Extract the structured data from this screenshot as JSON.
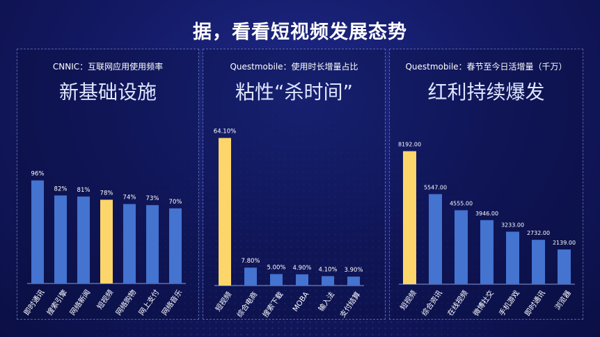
{
  "headline": "据，看看短视频发展态势",
  "colors": {
    "bar": "#4473d0",
    "highlight": "#fdd66b",
    "axis": "#8a9ad8"
  },
  "panels": [
    {
      "source": "CNNIC：互联网应用使用频率",
      "big_title": "新基础设施"
    },
    {
      "source": "Questmobile：使用时长增量占比",
      "big_title": "粘性“杀时间”"
    },
    {
      "source": "Questmobile：春节至今日活增量（千万）",
      "big_title": "红利持续爆发"
    }
  ],
  "chart_data": [
    {
      "type": "bar",
      "categories": [
        "即时通讯",
        "搜索引擎",
        "网络新闻",
        "短视频",
        "网络购物",
        "网上支付",
        "网络音乐"
      ],
      "values": [
        96,
        82,
        81,
        78,
        74,
        73,
        70
      ],
      "value_labels": [
        "96%",
        "82%",
        "81%",
        "78%",
        "74%",
        "73%",
        "70%"
      ],
      "highlight_index": 3,
      "ylim": [
        0,
        110
      ]
    },
    {
      "type": "bar",
      "categories": [
        "短视频",
        "综合电商",
        "搜索下载",
        "MOBA",
        "输入法",
        "支付结算"
      ],
      "values": [
        64.1,
        7.8,
        5.0,
        4.9,
        4.1,
        3.9
      ],
      "value_labels": [
        "64.10%",
        "7.80%",
        "5.00%",
        "4.90%",
        "4.10%",
        "3.90%"
      ],
      "highlight_index": 0,
      "ylim": [
        0,
        70
      ]
    },
    {
      "type": "bar",
      "categories": [
        "短视频",
        "综合资讯",
        "在线视频",
        "微博社交",
        "手机游戏",
        "即时通讯",
        "浏览器"
      ],
      "values": [
        8192.0,
        5547.0,
        4555.0,
        3946.0,
        3233.0,
        2732.0,
        2139.0
      ],
      "value_labels": [
        "8192.00",
        "5547.00",
        "4555.00",
        "3946.00",
        "3233.00",
        "2732.00",
        "2139.00"
      ],
      "highlight_index": 0,
      "ylim": [
        0,
        9500
      ]
    }
  ]
}
